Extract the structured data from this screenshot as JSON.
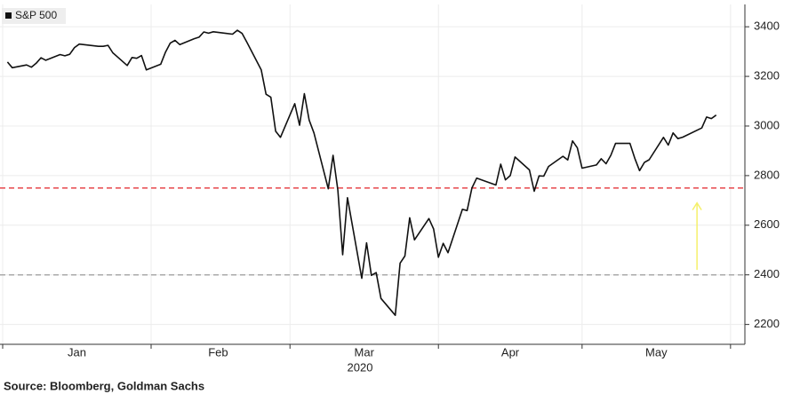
{
  "chart_data": {
    "type": "line",
    "legend": "S&P 500",
    "source": "Source: Bloomberg, Goldman Sachs",
    "x_sub_label": "2020",
    "x": [
      1,
      2,
      5,
      6,
      7,
      8,
      9,
      12,
      13,
      14,
      15,
      16,
      20,
      21,
      22,
      23,
      26,
      27,
      28,
      29,
      30,
      33,
      34,
      35,
      36,
      37,
      40,
      41,
      42,
      43,
      44,
      48,
      49,
      50,
      51,
      54,
      55,
      56,
      57,
      58,
      61,
      62,
      63,
      64,
      65,
      68,
      69,
      70,
      71,
      72,
      75,
      76,
      77,
      78,
      79,
      82,
      83,
      84,
      85,
      86,
      89,
      90,
      91,
      92,
      93,
      96,
      97,
      98,
      99,
      103,
      104,
      105,
      106,
      107,
      110,
      111,
      112,
      113,
      114,
      117,
      118,
      119,
      120,
      121,
      124,
      125,
      126,
      127,
      128,
      131,
      132,
      133,
      134,
      135,
      138,
      139,
      140,
      141,
      142,
      146,
      147,
      148,
      149
    ],
    "series": [
      {
        "name": "S&P 500",
        "color": "#111111",
        "values": [
          3258,
          3235,
          3246,
          3237,
          3253,
          3275,
          3265,
          3288,
          3283,
          3289,
          3316,
          3330,
          3321,
          3321,
          3325,
          3295,
          3244,
          3276,
          3273,
          3284,
          3226,
          3249,
          3298,
          3334,
          3345,
          3328,
          3352,
          3358,
          3379,
          3374,
          3380,
          3370,
          3386,
          3373,
          3338,
          3226,
          3128,
          3116,
          2979,
          2954,
          3090,
          3003,
          3130,
          3024,
          2972,
          2747,
          2882,
          2741,
          2481,
          2711,
          2386,
          2529,
          2398,
          2409,
          2305,
          2237,
          2447,
          2476,
          2630,
          2541,
          2627,
          2585,
          2471,
          2527,
          2489,
          2664,
          2659,
          2750,
          2790,
          2762,
          2846,
          2783,
          2800,
          2875,
          2823,
          2737,
          2799,
          2798,
          2837,
          2878,
          2863,
          2940,
          2912,
          2830,
          2843,
          2868,
          2848,
          2882,
          2930,
          2930,
          2870,
          2820,
          2853,
          2864,
          2954,
          2923,
          2972,
          2949,
          2955,
          2992,
          3036,
          3030,
          3044
        ]
      }
    ],
    "xlim": [
      0,
      155
    ],
    "xticks": [
      0,
      31,
      60,
      91,
      121,
      152
    ],
    "x_labels": [
      {
        "value": 15.5,
        "label": "Jan"
      },
      {
        "value": 45,
        "label": "Feb"
      },
      {
        "value": 75.5,
        "label": "Mar"
      },
      {
        "value": 106,
        "label": "Apr"
      },
      {
        "value": 136.5,
        "label": "May"
      }
    ],
    "ylim": [
      2120,
      3490
    ],
    "yticks": [
      2200,
      2400,
      2600,
      2800,
      3000,
      3200,
      3400
    ],
    "grid": true,
    "hlines": [
      {
        "value": 2750,
        "color": "#e8474c"
      },
      {
        "value": 2400,
        "color": "#aaaaaa"
      }
    ],
    "arrow": {
      "x": 145,
      "from": 2420,
      "to": 2690,
      "color": "#f5f06a"
    }
  }
}
